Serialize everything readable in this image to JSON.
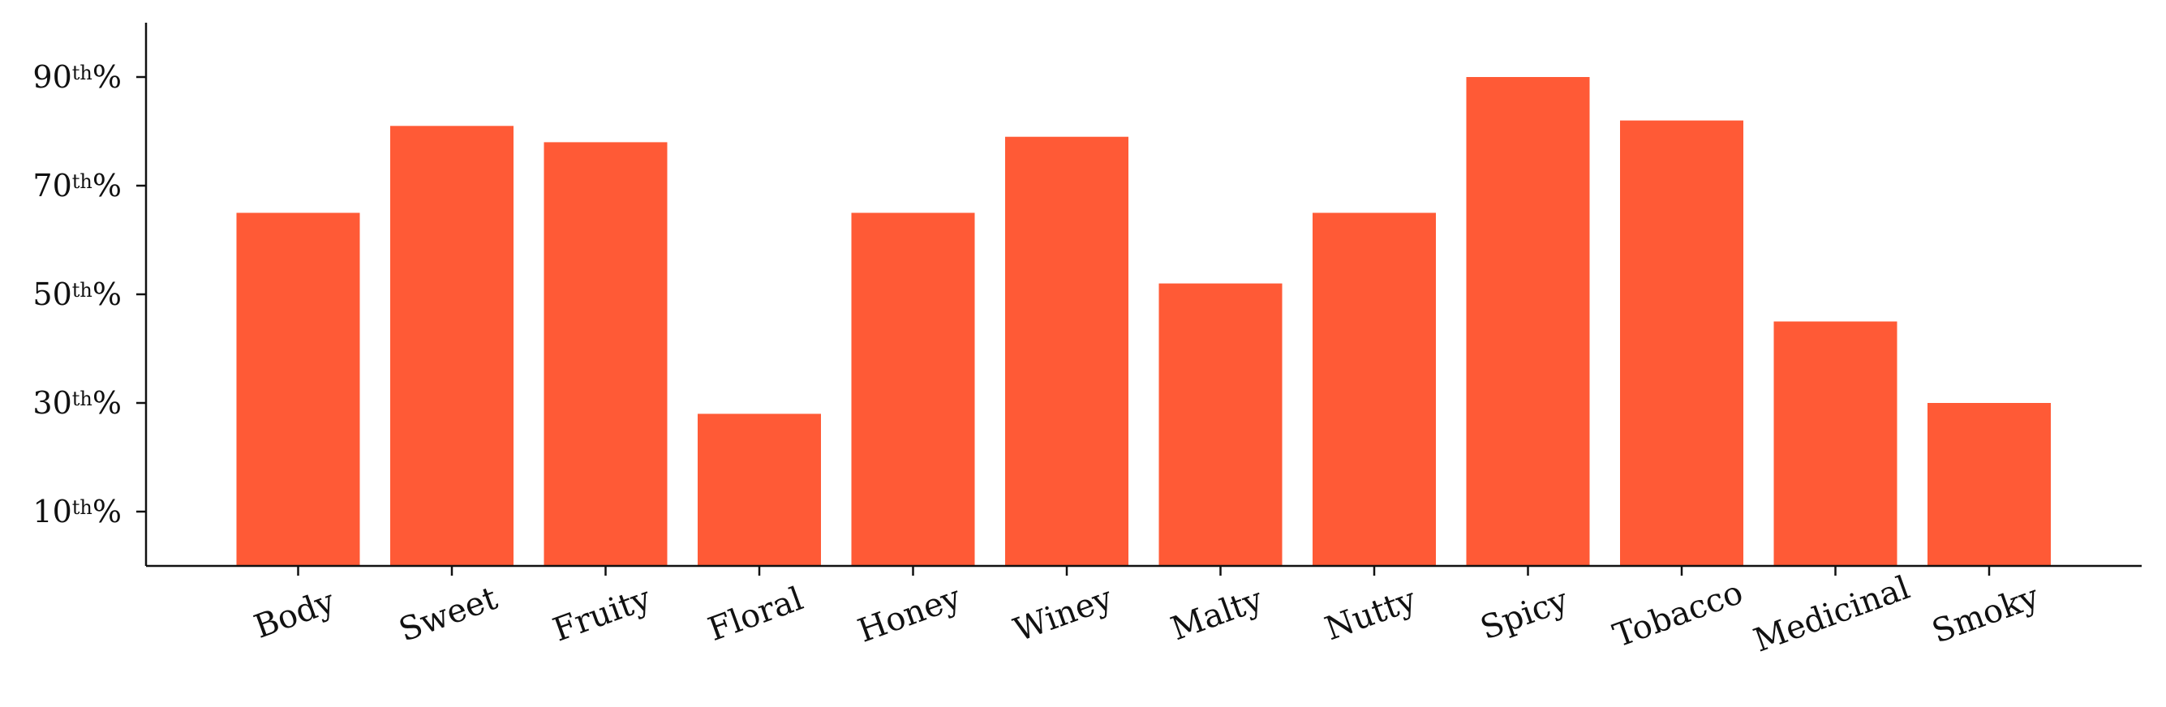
{
  "chart_data": {
    "type": "bar",
    "title": "",
    "xlabel": "",
    "ylabel": "",
    "categories": [
      "Body",
      "Sweet",
      "Fruity",
      "Floral",
      "Honey",
      "Winey",
      "Malty",
      "Nutty",
      "Spicy",
      "Tobacco",
      "Medicinal",
      "Smoky"
    ],
    "values": [
      65,
      81,
      78,
      28,
      65,
      79,
      52,
      65,
      90,
      82,
      45,
      30
    ],
    "ylim": [
      0,
      100
    ],
    "yticks": [
      {
        "value": 10,
        "number": "10",
        "suffix": "th",
        "unit": "%"
      },
      {
        "value": 30,
        "number": "30",
        "suffix": "th",
        "unit": "%"
      },
      {
        "value": 50,
        "number": "50",
        "suffix": "th",
        "unit": "%"
      },
      {
        "value": 70,
        "number": "70",
        "suffix": "th",
        "unit": "%"
      },
      {
        "value": 90,
        "number": "90",
        "suffix": "th",
        "unit": "%"
      }
    ],
    "grid": false,
    "legend": "none",
    "bar_color": "#ff5a36",
    "axis_color": "#111111"
  }
}
